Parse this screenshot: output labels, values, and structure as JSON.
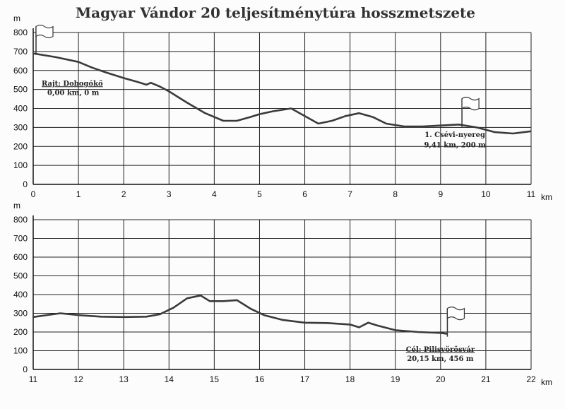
{
  "title": "Magyar Vándor 20 teljesítménytúra hosszmetszete",
  "chart_data": [
    {
      "type": "line",
      "title": "Magyar Vándor 20 teljesítménytúra hosszmetszete",
      "xlabel": "km",
      "ylabel": "m",
      "xlim": [
        0,
        11
      ],
      "ylim": [
        0,
        800
      ],
      "xticks": [
        0,
        1,
        2,
        3,
        4,
        5,
        6,
        7,
        8,
        9,
        10,
        11
      ],
      "yticks": [
        0,
        100,
        200,
        300,
        400,
        500,
        600,
        700,
        800
      ],
      "grid": true,
      "series": [
        {
          "x": [
            0,
            0.5,
            1.0,
            1.3,
            1.6,
            2.0,
            2.3,
            2.5,
            2.6,
            2.8,
            3.0,
            3.4,
            3.8,
            4.2,
            4.5,
            4.8,
            5.0,
            5.3,
            5.7,
            6.0,
            6.3,
            6.6,
            6.9,
            7.2,
            7.5,
            7.8,
            8.2,
            8.6,
            9.0,
            9.4,
            9.8,
            10.2,
            10.6,
            11.0
          ],
          "y": [
            690,
            670,
            645,
            615,
            590,
            560,
            540,
            525,
            535,
            515,
            490,
            430,
            375,
            335,
            335,
            355,
            370,
            385,
            400,
            360,
            320,
            335,
            360,
            375,
            355,
            320,
            305,
            305,
            310,
            315,
            300,
            275,
            268,
            280
          ]
        }
      ],
      "annotations": {
        "start": {
          "line1": "Rajt: Dobogókő",
          "line2": "0,00 km, 0 m",
          "x": 0.2,
          "y": 710
        },
        "checkpoint": {
          "line1": "1. Csévi-nyereg",
          "line2": "9,41 km, 200 m",
          "x": 9.41,
          "y": 325
        }
      }
    },
    {
      "type": "line",
      "xlabel": "km",
      "ylabel": "m",
      "xlim": [
        11,
        22
      ],
      "ylim": [
        0,
        800
      ],
      "xticks": [
        11,
        12,
        13,
        14,
        15,
        16,
        17,
        18,
        19,
        20,
        21,
        22
      ],
      "yticks": [
        0,
        100,
        200,
        300,
        400,
        500,
        600,
        700,
        800
      ],
      "grid": true,
      "series": [
        {
          "x": [
            11.0,
            11.3,
            11.6,
            12.0,
            12.5,
            13.0,
            13.5,
            13.8,
            14.1,
            14.4,
            14.7,
            14.9,
            15.2,
            15.5,
            15.8,
            16.1,
            16.5,
            17.0,
            17.5,
            18.0,
            18.2,
            18.4,
            18.6,
            19.0,
            19.5,
            20.0,
            20.15
          ],
          "y": [
            280,
            290,
            300,
            290,
            282,
            280,
            282,
            295,
            330,
            380,
            395,
            365,
            365,
            370,
            325,
            290,
            265,
            250,
            248,
            240,
            225,
            250,
            235,
            210,
            200,
            195,
            190
          ]
        }
      ],
      "annotations": {
        "finish": {
          "line1": "Cél: Pilisvörösvár",
          "line2": "20,15 km, 456 m",
          "x": 20.15,
          "y": 190
        }
      }
    }
  ]
}
